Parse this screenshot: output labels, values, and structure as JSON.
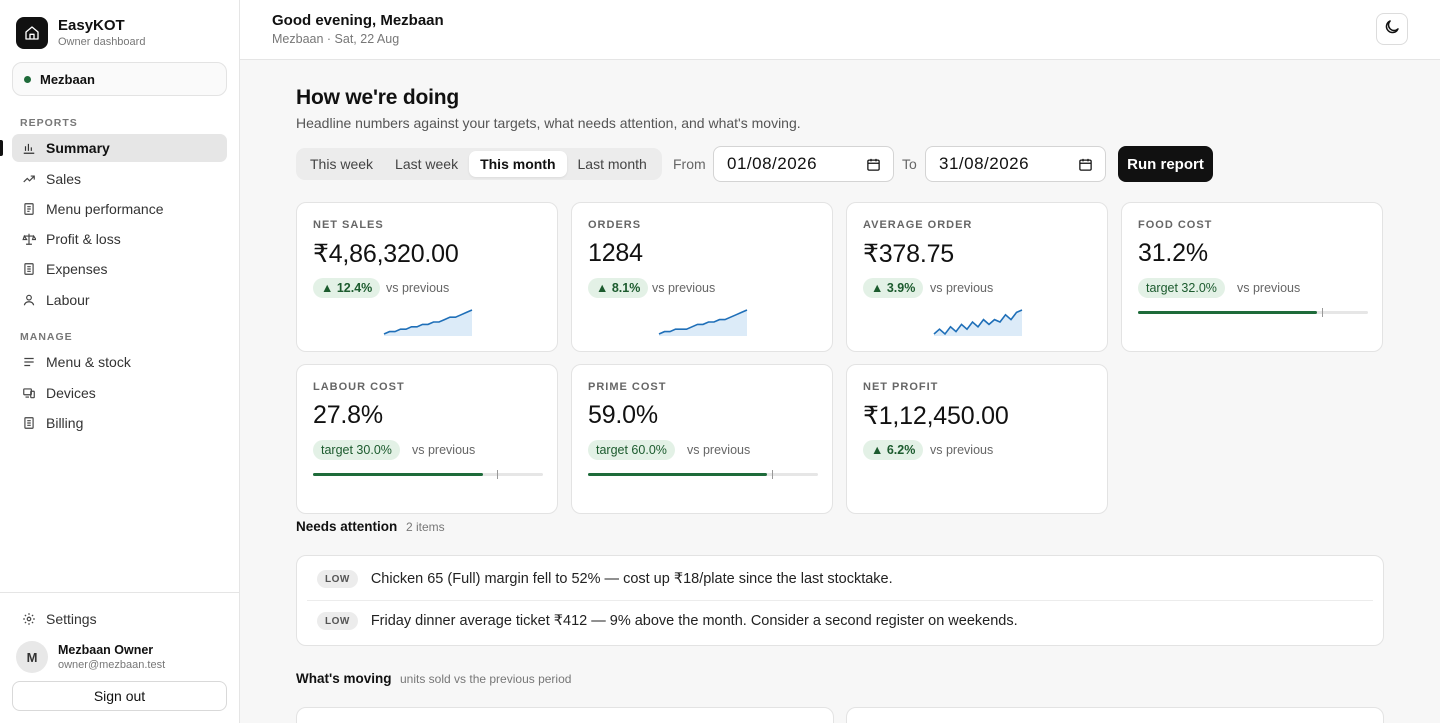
{
  "brand": {
    "name": "EasyKOT",
    "subtitle": "Owner dashboard"
  },
  "location": {
    "name": "Mezbaan",
    "status_color": "#1f6b3a"
  },
  "sidebar": {
    "reports_heading": "REPORTS",
    "reports": [
      {
        "label": "Summary",
        "icon": "bar-chart-icon",
        "active": true
      },
      {
        "label": "Sales",
        "icon": "trending-up-icon"
      },
      {
        "label": "Menu performance",
        "icon": "document-icon"
      },
      {
        "label": "Profit & loss",
        "icon": "scale-icon"
      },
      {
        "label": "Expenses",
        "icon": "receipt-icon"
      },
      {
        "label": "Labour",
        "icon": "user-icon"
      }
    ],
    "manage_heading": "MANAGE",
    "manage": [
      {
        "label": "Menu & stock",
        "icon": "list-icon"
      },
      {
        "label": "Devices",
        "icon": "devices-icon"
      },
      {
        "label": "Billing",
        "icon": "receipt-icon"
      }
    ],
    "settings_label": "Settings",
    "user": {
      "initial": "M",
      "name": "Mezbaan Owner",
      "email": "owner@mezbaan.test"
    },
    "signout_label": "Sign out"
  },
  "header": {
    "greeting": "Good evening, Mezbaan",
    "subtitle": "Mezbaan · Sat, 22 Aug",
    "theme_icon": "moon-icon"
  },
  "page": {
    "title": "How we're doing",
    "subtitle": "Headline numbers against your targets, what needs attention, and what's moving."
  },
  "range": {
    "options": [
      "This week",
      "Last week",
      "This month",
      "Last month"
    ],
    "selected": "This month",
    "from_label": "From",
    "from_value": "01/08/2026",
    "to_label": "To",
    "to_value": "31/08/2026",
    "run_label": "Run report"
  },
  "kpis": [
    {
      "label": "NET SALES",
      "value": "₹4,86,320.00",
      "badge": "▲ 12.4%",
      "vs": "vs previous",
      "kind": "trend",
      "trend": [
        2,
        3,
        3,
        4,
        4,
        5,
        5,
        6,
        6,
        7,
        7,
        8,
        9,
        9,
        10,
        11,
        12
      ]
    },
    {
      "label": "ORDERS",
      "value": "1284",
      "badge": "▲ 8.1%",
      "vs": "vs previous",
      "kind": "trend",
      "trend": [
        2,
        3,
        3,
        4,
        4,
        4,
        5,
        6,
        6,
        7,
        7,
        8,
        8,
        9,
        10,
        11,
        12
      ]
    },
    {
      "label": "AVERAGE ORDER",
      "value": "₹378.75",
      "badge": "▲ 3.9%",
      "vs": "vs previous",
      "kind": "trend",
      "trend": [
        3,
        5,
        3,
        6,
        4,
        7,
        5,
        8,
        6,
        9,
        7,
        9,
        8,
        11,
        9,
        12,
        13
      ]
    },
    {
      "label": "FOOD COST",
      "value": "31.2%",
      "badge": "target 32.0%",
      "vs": "vs previous",
      "kind": "target",
      "level": 0.78,
      "target_level": 0.8
    },
    {
      "label": "LABOUR COST",
      "value": "27.8%",
      "badge": "target 30.0%",
      "vs": "vs previous",
      "kind": "target",
      "level": 0.74,
      "target_level": 0.8
    },
    {
      "label": "PRIME COST",
      "value": "59.0%",
      "badge": "target 60.0%",
      "vs": "vs previous",
      "kind": "target",
      "level": 0.78,
      "target_level": 0.8
    },
    {
      "label": "NET PROFIT",
      "value": "₹1,12,450.00",
      "badge": "▲ 6.2%",
      "vs": "vs previous",
      "kind": "none"
    }
  ],
  "attention": {
    "title": "Needs attention",
    "count": "2 items",
    "items": [
      {
        "level": "LOW",
        "text": "Chicken 65 (Full) margin fell to 52% — cost up ₹18/plate since the last stocktake."
      },
      {
        "level": "LOW",
        "text": "Friday dinner average ticket ₹412 — 9% above the month. Consider a second register on weekends."
      }
    ]
  },
  "moving": {
    "title": "What's moving",
    "subtitle": "units sold vs the previous period"
  },
  "colors": {
    "accent": "#111111",
    "good": "#1e6b3a",
    "good_bg": "#e3f1e6",
    "spark": "#1f6fb8"
  }
}
